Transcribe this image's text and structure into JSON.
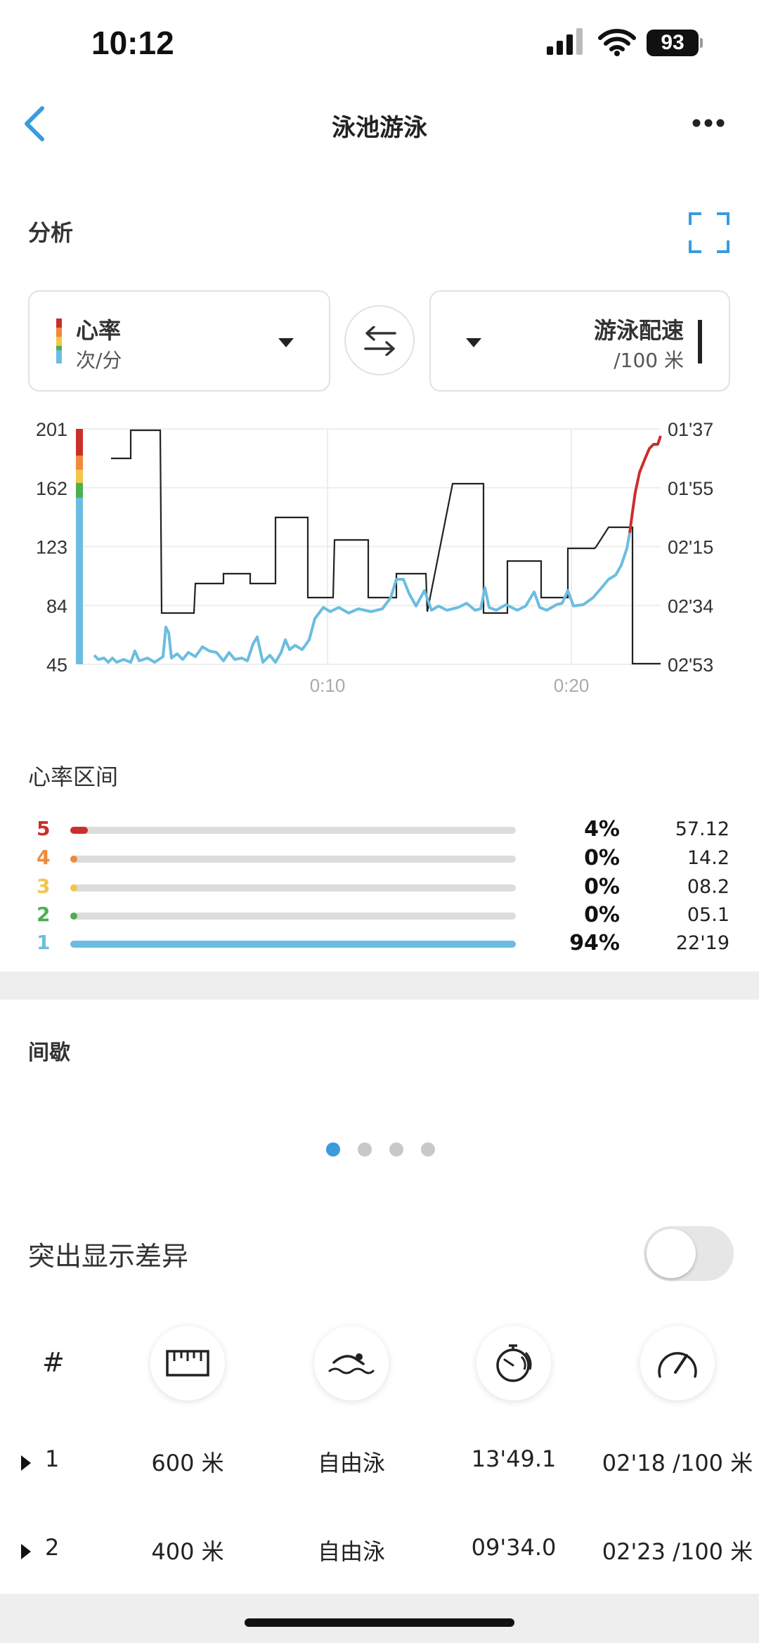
{
  "status_bar": {
    "time": "10:12",
    "battery": "93"
  },
  "nav": {
    "title": "泳池游泳",
    "back_icon": "chevron-left-icon",
    "more_icon": "ellipsis-icon"
  },
  "analysis": {
    "label": "分析",
    "left_selector": {
      "title": "心率",
      "unit": "次/分"
    },
    "right_selector": {
      "title": "游泳配速",
      "unit": "/100 米"
    }
  },
  "chart_data": {
    "type": "line",
    "left_axis_ticks": [
      "201",
      "162",
      "123",
      "84",
      "45"
    ],
    "right_axis_ticks": [
      "01'37",
      "01'55",
      "02'15",
      "02'34",
      "02'53"
    ],
    "x_ticks": [
      "0:10",
      "0:20"
    ],
    "series": [
      {
        "name": "心率",
        "color": "#6bbde0"
      },
      {
        "name": "游泳配速",
        "color": "#222222"
      }
    ]
  },
  "zones": {
    "label": "心率区间",
    "items": [
      {
        "num": "5",
        "pct": "4%",
        "time": "57.12",
        "fraction": 0.04,
        "color": "#c9302c"
      },
      {
        "num": "4",
        "pct": "0%",
        "time": "14.2",
        "fraction": 0.0,
        "color": "#ee8a3c"
      },
      {
        "num": "3",
        "pct": "0%",
        "time": "08.2",
        "fraction": 0.0,
        "color": "#f3c54a"
      },
      {
        "num": "2",
        "pct": "0%",
        "time": "05.1",
        "fraction": 0.0,
        "color": "#4caf50"
      },
      {
        "num": "1",
        "pct": "94%",
        "time": "22'19",
        "fraction": 1.0,
        "color": "#6bbde0"
      }
    ]
  },
  "intervals": {
    "label": "间歇",
    "page_count": 4,
    "active_page": 1,
    "highlight_label": "突出显示差异",
    "highlight_on": false,
    "header_hash": "#",
    "header_icons": [
      "ruler-icon",
      "swimmer-icon",
      "stopwatch-icon",
      "speedometer-icon"
    ],
    "rows": [
      {
        "index": "1",
        "distance": "600 米",
        "stroke": "自由泳",
        "duration": "13'49.1",
        "pace": "02'18 /100 米"
      },
      {
        "index": "2",
        "distance": "400 米",
        "stroke": "自由泳",
        "duration": "09'34.0",
        "pace": "02'23 /100 米"
      }
    ]
  }
}
